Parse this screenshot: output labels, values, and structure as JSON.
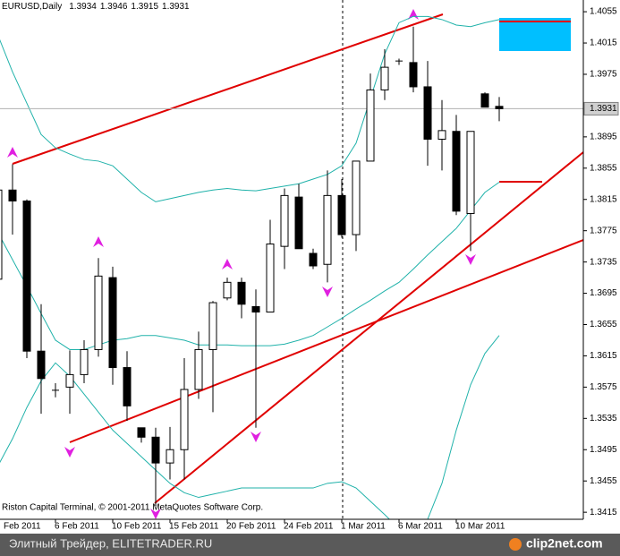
{
  "chart_data": {
    "type": "candlestick",
    "title": "EURUSD,Daily",
    "categories": [
      "Feb 2011",
      null,
      null,
      null,
      "6 Feb 2011",
      null,
      null,
      null,
      "10 Feb 2011",
      null,
      null,
      null,
      "15 Feb 2011",
      null,
      null,
      null,
      "20 Feb 2011",
      null,
      null,
      null,
      "24 Feb 2011",
      null,
      null,
      null,
      "1 Mar 2011",
      null,
      null,
      null,
      "6 Mar 2011",
      null,
      null,
      null,
      "10 Mar 2011",
      null,
      null,
      null
    ],
    "series": [
      {
        "color_up": "#ffffff",
        "color_down": "#000000",
        "open": [
          1.3713,
          1.3827,
          1.3813,
          1.3621,
          1.3571,
          1.3575,
          1.3591,
          1.3623,
          1.3715,
          1.36,
          1.3523,
          1.3511,
          1.3478,
          1.3495,
          1.3572,
          1.3623,
          1.3689,
          1.3709,
          1.3678,
          1.3671,
          1.3755,
          1.3818,
          1.3746,
          1.3732,
          1.382,
          1.377,
          1.3864,
          1.3955,
          1.3992,
          1.399,
          1.3959,
          1.3892,
          1.3902,
          1.3797,
          1.395,
          1.3934
        ],
        "high": [
          1.3841,
          1.386,
          1.3815,
          1.3681,
          1.358,
          1.3622,
          1.3635,
          1.374,
          1.3729,
          1.3621,
          1.3523,
          1.3523,
          1.3524,
          1.3612,
          1.3646,
          1.3685,
          1.3715,
          1.3715,
          1.37,
          1.3789,
          1.3829,
          1.3835,
          1.3752,
          1.3852,
          1.3841,
          1.3864,
          1.3976,
          1.4007,
          1.3995,
          1.4036,
          1.3992,
          1.3942,
          1.3923,
          1.3902,
          1.3952,
          1.3946
        ],
        "low": [
          1.3713,
          1.377,
          1.3612,
          1.3541,
          1.3562,
          1.3541,
          1.358,
          1.3614,
          1.3578,
          1.3532,
          1.3504,
          1.3423,
          1.3457,
          1.3457,
          1.356,
          1.3543,
          1.3686,
          1.3663,
          1.3523,
          1.3671,
          1.3726,
          1.3752,
          1.3726,
          1.3709,
          1.3766,
          1.3749,
          1.3864,
          1.3942,
          1.3987,
          1.3952,
          1.3858,
          1.3852,
          1.3795,
          1.3749,
          1.3933,
          1.3915
        ],
        "close": [
          1.3827,
          1.3813,
          1.3621,
          1.3586,
          1.3571,
          1.3591,
          1.3623,
          1.3717,
          1.36,
          1.3551,
          1.3511,
          1.3478,
          1.3495,
          1.3572,
          1.3623,
          1.3683,
          1.3709,
          1.3681,
          1.3671,
          1.3758,
          1.382,
          1.3752,
          1.373,
          1.382,
          1.377,
          1.3864,
          1.3955,
          1.3984,
          1.3992,
          1.3959,
          1.3892,
          1.3903,
          1.38,
          1.3902,
          1.3933,
          1.3931
        ]
      }
    ],
    "bands": [
      {
        "color": "#20b2aa",
        "values": [
          1.4024,
          1.3978,
          1.3938,
          1.3898,
          1.3881,
          1.3873,
          1.3866,
          1.3864,
          1.3858,
          1.3841,
          1.3824,
          1.3812,
          1.3816,
          1.382,
          1.3824,
          1.3827,
          1.3829,
          1.3827,
          1.3826,
          1.3829,
          1.3832,
          1.3835,
          1.3841,
          1.3847,
          1.3858,
          1.3887,
          1.3944,
          1.4001,
          1.4041,
          1.4049,
          1.4049,
          1.4045,
          1.4038,
          1.4036,
          1.4041,
          1.4045
        ]
      },
      {
        "color": "#20b2aa",
        "values": [
          1.3772,
          1.3738,
          1.3704,
          1.3669,
          1.3635,
          1.3623,
          1.3623,
          1.3629,
          1.3635,
          1.3637,
          1.3641,
          1.3641,
          1.3638,
          1.3635,
          1.3629,
          1.3629,
          1.3629,
          1.3628,
          1.3628,
          1.3628,
          1.363,
          1.3635,
          1.3641,
          1.3652,
          1.3663,
          1.3675,
          1.3686,
          1.3698,
          1.3709,
          1.3726,
          1.3744,
          1.3761,
          1.3778,
          1.3801,
          1.3824,
          1.3837
        ]
      },
      {
        "color": "#20b2aa",
        "values": [
          1.3475,
          1.3509,
          1.3549,
          1.3583,
          1.3606,
          1.3589,
          1.3566,
          1.3543,
          1.352,
          1.3503,
          1.3486,
          1.3469,
          1.3452,
          1.344,
          1.3434,
          1.3438,
          1.3442,
          1.3446,
          1.3446,
          1.3446,
          1.3446,
          1.3446,
          1.3446,
          1.3452,
          1.3454,
          1.3446,
          1.3429,
          1.3412,
          1.3394,
          1.3383,
          1.3406,
          1.3452,
          1.352,
          1.3578,
          1.3618,
          1.3641
        ]
      }
    ],
    "ylim": [
      1.3406,
      1.407
    ],
    "yticks": [
      1.4055,
      1.4015,
      1.3975,
      1.3895,
      1.3855,
      1.3815,
      1.3775,
      1.3735,
      1.3695,
      1.3655,
      1.3615,
      1.3575,
      1.3535,
      1.3495,
      1.3455,
      1.3415
    ],
    "annotation": "Riston Capital Terminal, © 2001-2011 MetaQuotes Software Corp."
  },
  "footer": {
    "text": "Элитный Трейдер, ELITETRADER.RU",
    "logo": "clip2net.com"
  }
}
